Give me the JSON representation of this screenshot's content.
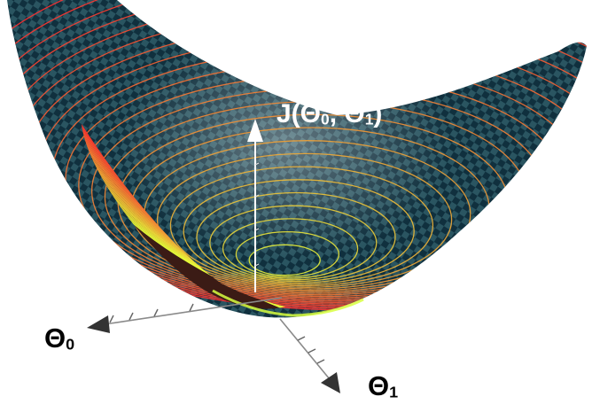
{
  "figure": {
    "axis_labels": {
      "z_main": "J(Θ",
      "z_sub0": "0",
      "z_sep": ", Θ",
      "z_sub1": "1",
      "z_close": ")",
      "theta0_main": "Θ",
      "theta0_sub": "0",
      "theta1_main": "Θ",
      "theta1_sub": "1"
    },
    "colors": {
      "surface_dark": "#0e2a38",
      "surface_light": "#2f5d66",
      "contour_low": "#e6ff3a",
      "contour_high": "#ff3030",
      "axis_line": "#888888",
      "z_axis": "#ffffff",
      "arrow_head": "#303030"
    },
    "surface": {
      "type": "convex-bowl",
      "pattern": "checkerboard",
      "contours": "concentric-level-curves"
    }
  }
}
